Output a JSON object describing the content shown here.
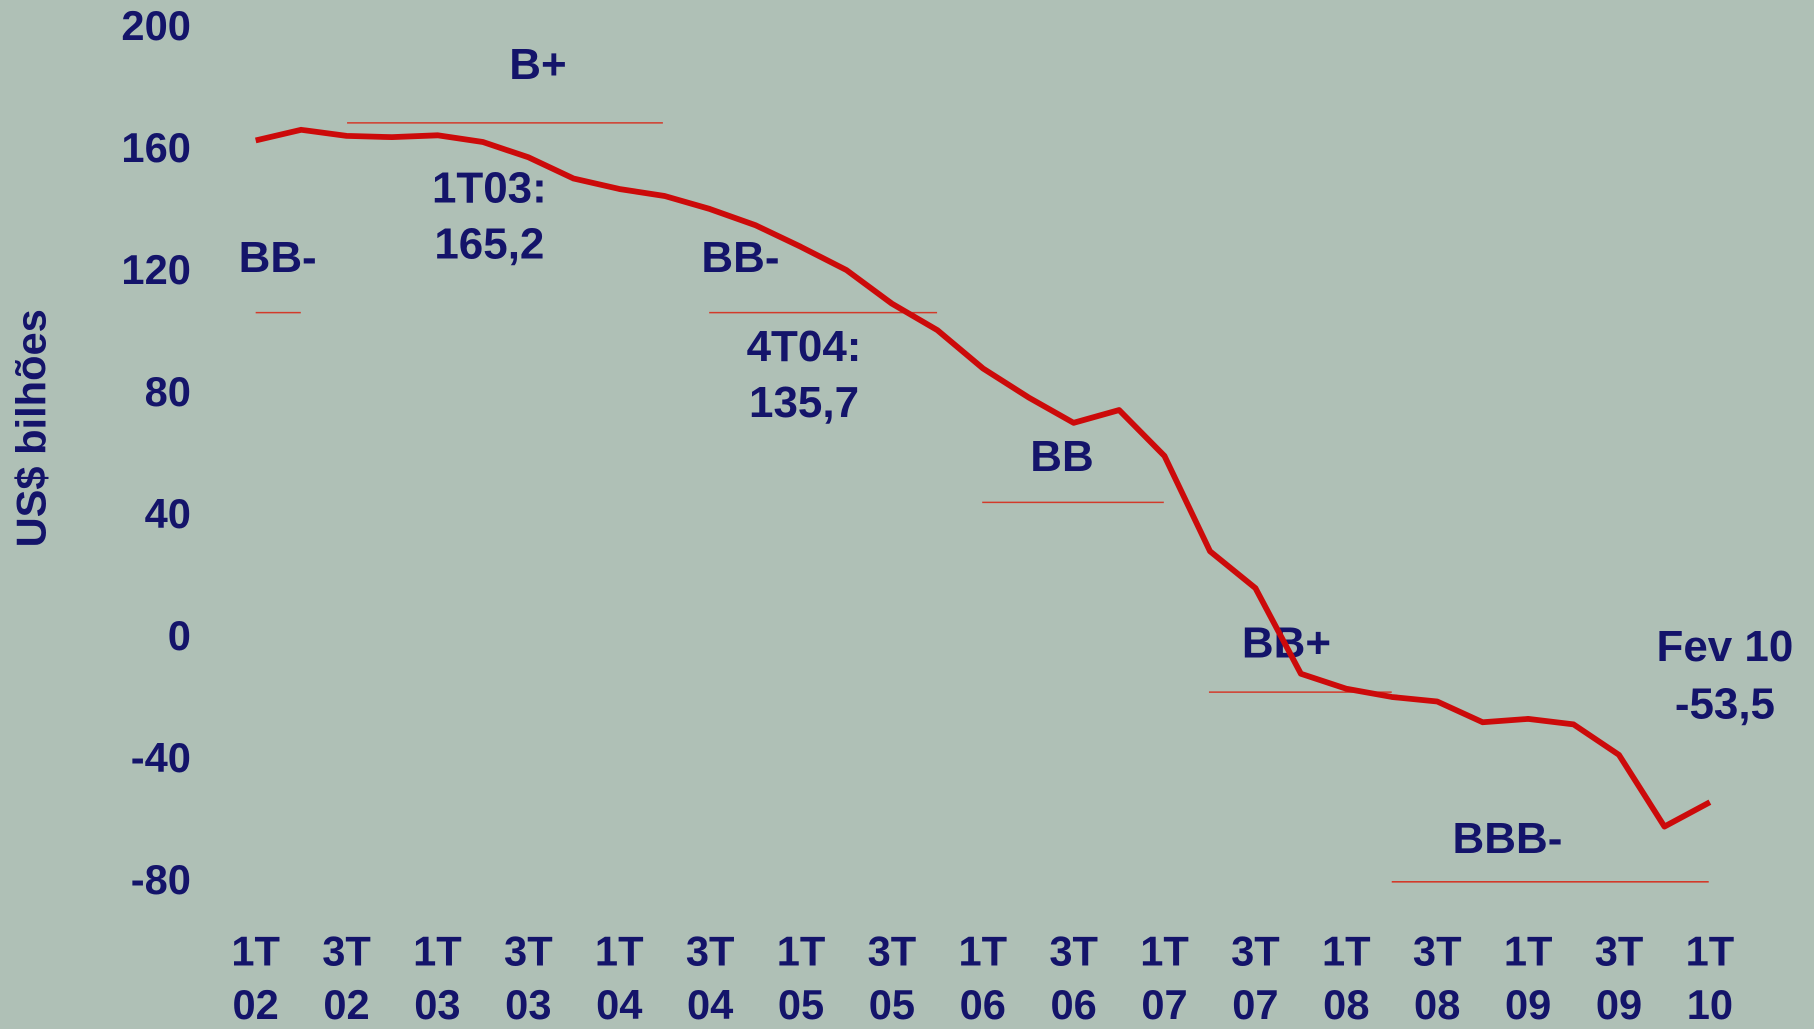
{
  "chart_data": {
    "type": "line",
    "y_label": "US$ bilhões",
    "categories": [
      [
        "1T",
        "02"
      ],
      null,
      [
        "3T",
        "02"
      ],
      null,
      [
        "1T",
        "03"
      ],
      null,
      [
        "3T",
        "03"
      ],
      null,
      [
        "1T",
        "04"
      ],
      null,
      [
        "3T",
        "04"
      ],
      null,
      [
        "1T",
        "05"
      ],
      null,
      [
        "3T",
        "05"
      ],
      null,
      [
        "1T",
        "06"
      ],
      null,
      [
        "3T",
        "06"
      ],
      null,
      [
        "1T",
        "07"
      ],
      null,
      [
        "3T",
        "07"
      ],
      null,
      [
        "1T",
        "08"
      ],
      null,
      [
        "3T",
        "08"
      ],
      null,
      [
        "1T",
        "09"
      ],
      null,
      [
        "3T",
        "09"
      ],
      null,
      [
        "1T",
        "10"
      ]
    ],
    "series": [
      {
        "color": "#cc0a0a",
        "values": [
          163.5,
          167,
          165,
          164.6,
          165.2,
          163,
          158,
          151,
          147.6,
          145.3,
          141,
          135.7,
          128.6,
          121,
          110,
          101.3,
          88.8,
          79.3,
          70.9,
          75.1,
          60,
          28.8,
          16.7,
          -11.4,
          -16.3,
          -19,
          -20.5,
          -27.3,
          -26.2,
          -28,
          -38,
          -61.5,
          -53.5
        ]
      }
    ],
    "ylim": [
      -80,
      200
    ],
    "yticks": [
      -80,
      -40,
      0,
      40,
      80,
      120,
      160,
      200
    ],
    "annotations": {
      "ratings": [
        "B+",
        "BB-",
        "BB-",
        "BB",
        "BB+",
        "BBB-"
      ],
      "q1t03": [
        "1T03:",
        "165,2"
      ],
      "q4t04": [
        "4T04:",
        "135,7"
      ],
      "fev10": [
        "Fev 10",
        "-53,5"
      ]
    }
  }
}
